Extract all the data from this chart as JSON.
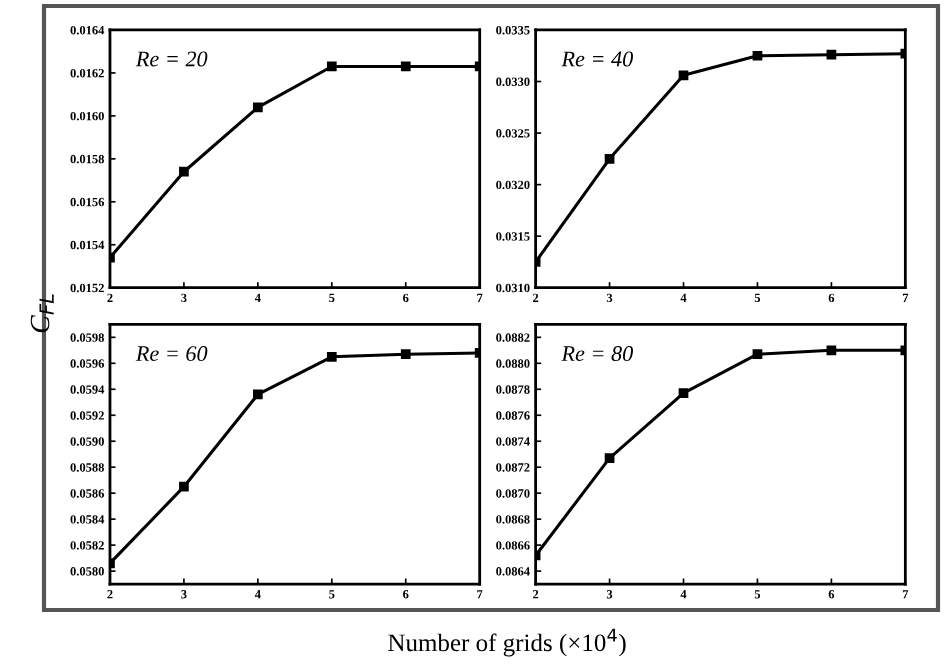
{
  "chart_data": [
    {
      "type": "line",
      "x": [
        2,
        3,
        4,
        5,
        6,
        7
      ],
      "series": [
        {
          "color": "#000000",
          "values": [
            0.01534,
            0.01574,
            0.01604,
            0.01623,
            0.01623,
            0.01623
          ]
        }
      ],
      "xlim": [
        2,
        7
      ],
      "xticks": [
        2,
        3,
        4,
        5,
        6,
        7
      ],
      "ylim": [
        0.0152,
        0.0164
      ],
      "yticks": [
        0.0152,
        0.0154,
        0.0156,
        0.0158,
        {
          "value": 0.016,
          "label": "0.0160"
        },
        0.0162,
        0.0164
      ],
      "marker": "square",
      "annotations": [
        "Re = 20"
      ],
      "ylabel": "C$_{FL}$"
    },
    {
      "type": "line",
      "x": [
        2,
        3,
        4,
        5,
        6,
        7
      ],
      "series": [
        {
          "color": "#000000",
          "values": [
            0.03125,
            0.03225,
            0.03306,
            0.03325,
            0.03326,
            0.03327
          ]
        }
      ],
      "xlim": [
        2,
        7
      ],
      "xticks": [
        2,
        3,
        4,
        5,
        6,
        7
      ],
      "ylim": [
        0.031,
        0.0335
      ],
      "yticks": [
        {
          "value": 0.031,
          "label": "0.0310"
        },
        0.0315,
        {
          "value": 0.032,
          "label": "0.0320"
        },
        0.0325,
        {
          "value": 0.033,
          "label": "0.0330"
        },
        0.0335
      ],
      "marker": "square",
      "annotations": [
        "Re = 40"
      ]
    },
    {
      "type": "line",
      "x": [
        2,
        3,
        4,
        5,
        6,
        7
      ],
      "series": [
        {
          "color": "#000000",
          "values": [
            0.05806,
            0.05865,
            0.05936,
            0.05965,
            0.05967,
            0.05968
          ]
        }
      ],
      "xlim": [
        2,
        7
      ],
      "xticks": [
        2,
        3,
        4,
        5,
        6,
        7
      ],
      "ylim": [
        0.0579,
        0.0599
      ],
      "yticks": [
        {
          "value": 0.058,
          "label": "0.0580"
        },
        0.0582,
        0.0584,
        0.0586,
        0.0588,
        {
          "value": 0.059,
          "label": "0.0590"
        },
        0.0592,
        0.0594,
        0.0596,
        0.0598
      ],
      "marker": "square",
      "annotations": [
        "Re = 60"
      ],
      "xlabel": "Number of grids (×10$^{4}$)"
    },
    {
      "type": "line",
      "x": [
        2,
        3,
        4,
        5,
        6,
        7
      ],
      "series": [
        {
          "color": "#000000",
          "values": [
            0.08652,
            0.08727,
            0.08777,
            0.08807,
            0.0881,
            0.0881
          ]
        }
      ],
      "xlim": [
        2,
        7
      ],
      "xticks": [
        2,
        3,
        4,
        5,
        6,
        7
      ],
      "ylim": [
        0.0863,
        0.0883
      ],
      "yticks": [
        0.0864,
        0.0866,
        0.0868,
        {
          "value": 0.087,
          "label": "0.0870"
        },
        0.0872,
        0.0874,
        0.0876,
        0.0878,
        {
          "value": 0.088,
          "label": "0.0880"
        },
        0.0882
      ],
      "marker": "square",
      "annotations": [
        "Re = 80"
      ]
    }
  ]
}
